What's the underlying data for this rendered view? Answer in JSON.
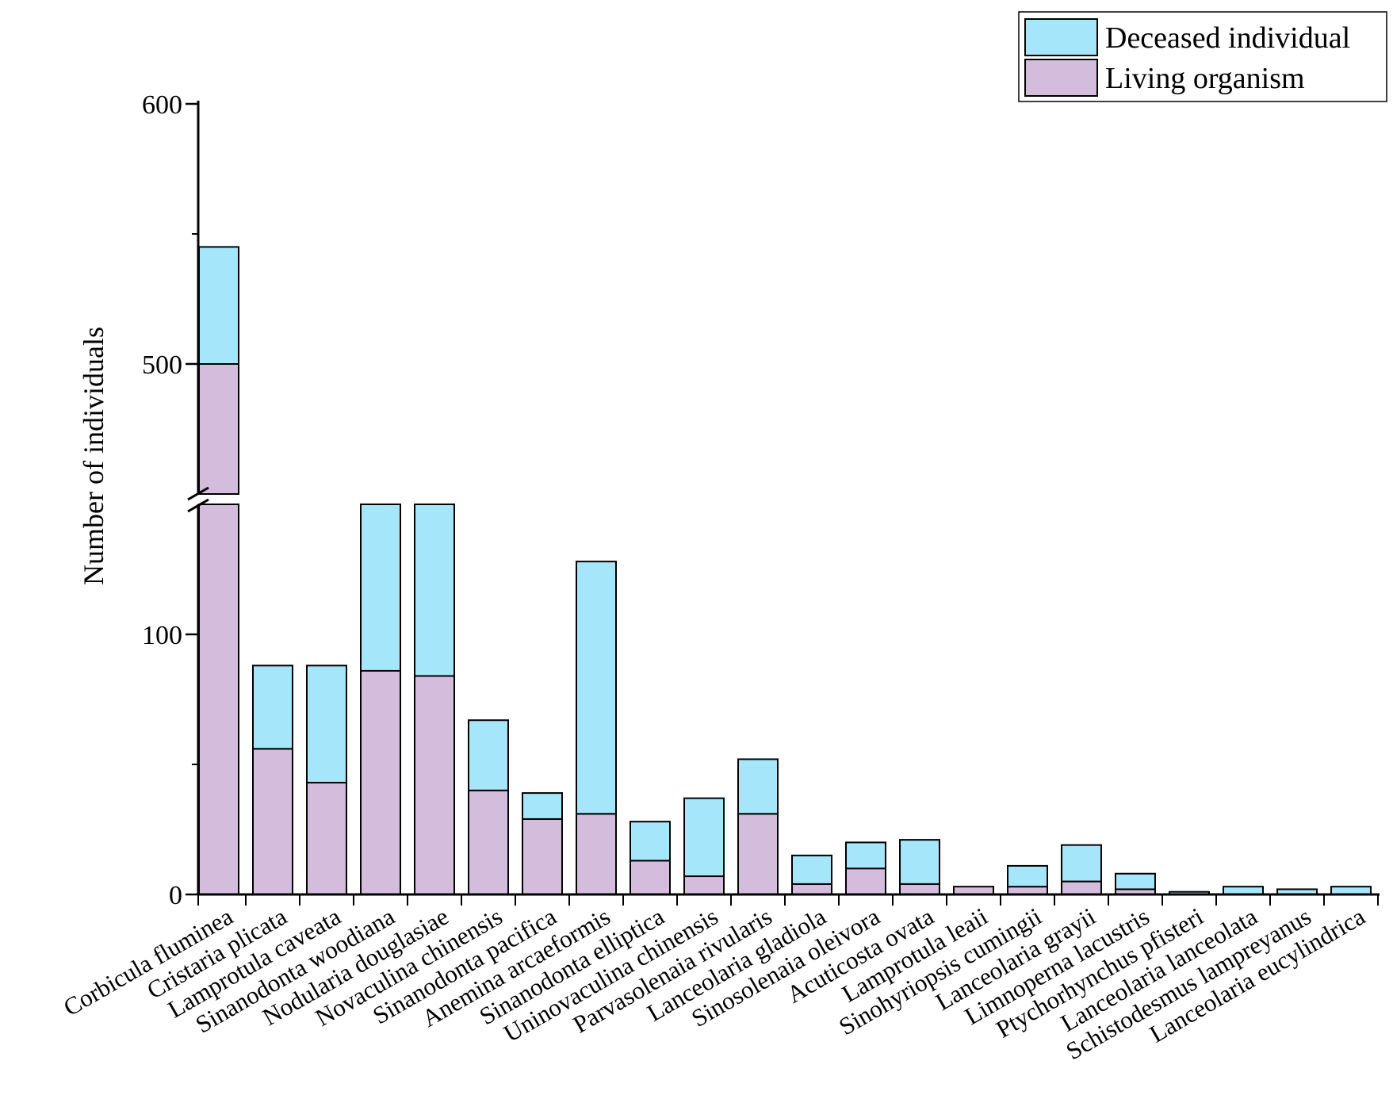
{
  "chart_data": {
    "type": "bar",
    "stacked": true,
    "ylabel": "Number of individuals",
    "xlabel": "",
    "y_axis_break": {
      "lower_range": [
        0,
        150
      ],
      "upper_range": [
        450,
        600
      ]
    },
    "y_ticks": [
      "0",
      "100",
      "500",
      "600"
    ],
    "legend_position": "top-right",
    "categories": [
      "Corbicula fluminea",
      "Cristaria plicata",
      "Lamprotula caveata",
      "Sinanodonta woodiana",
      "Nodularia douglasiae",
      "Novaculina chinensis",
      "Sinanodonta pacifica",
      "Anemina arcaeformis",
      "Sinanodonta elliptica",
      "Uninovaculina chinensis",
      "Parvasolenaia rivularis",
      "Lanceolaria gladiola",
      "Sinosolenaia oleivora",
      "Acuticosta ovata",
      "Lamprotula leaii",
      "Sinohyriopsis cumingii",
      "Lanceolaria grayii",
      "Limnoperna lacustris",
      "Ptychorhynchus pfisteri",
      "Lanceolaria lanceolata",
      "Schistodesmus lampreyanus",
      "Lanceolaria eucylindrica"
    ],
    "series": [
      {
        "name": "Living organism",
        "color": "#d3bcdc",
        "values": [
          500,
          56,
          43,
          86,
          84,
          40,
          29,
          31,
          13,
          7,
          31,
          4,
          10,
          4,
          3,
          3,
          5,
          2,
          0,
          0,
          0,
          0
        ]
      },
      {
        "name": "Deceased individual",
        "color": "#a6e6fb",
        "values": [
          45,
          32,
          45,
          70,
          72,
          27,
          10,
          97,
          15,
          30,
          21,
          11,
          10,
          17,
          0,
          8,
          14,
          6,
          1,
          3,
          2,
          3
        ]
      }
    ]
  }
}
